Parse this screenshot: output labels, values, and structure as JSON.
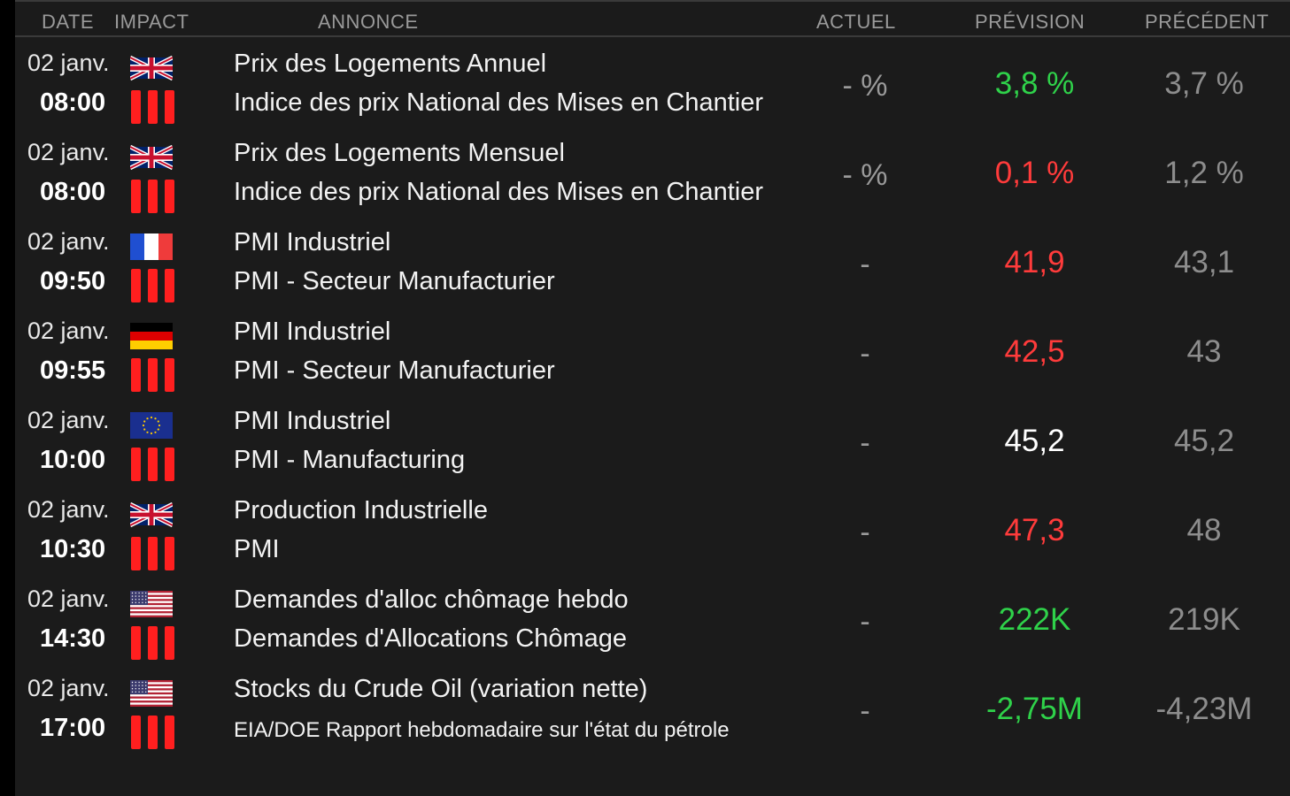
{
  "colors": {
    "up": "#2fd24a",
    "down": "#ff3b3b",
    "neutral": "#ffffff",
    "muted": "#8d8d8d",
    "impact": "#ff1f1f"
  },
  "header": {
    "date": "DATE",
    "impact": "IMPACT",
    "annonce": "ANNONCE",
    "actuel": "ACTUEL",
    "prevision": "PRÉVISION",
    "precedent": "PRÉCÉDENT"
  },
  "rows": [
    {
      "date": "02 janv.",
      "time": "08:00",
      "flag": "gb-flag-icon",
      "impact_level": 3,
      "title": "Prix des Logements Annuel",
      "subtitle": "Indice des prix National des Mises en Chantier",
      "actual": "- %",
      "forecast": "3,8 %",
      "forecast_trend": "up",
      "previous": "3,7 %"
    },
    {
      "date": "02 janv.",
      "time": "08:00",
      "flag": "gb-flag-icon",
      "impact_level": 3,
      "title": "Prix des Logements Mensuel",
      "subtitle": "Indice des prix National des Mises en Chantier",
      "actual": "- %",
      "forecast": "0,1 %",
      "forecast_trend": "down",
      "previous": "1,2 %"
    },
    {
      "date": "02 janv.",
      "time": "09:50",
      "flag": "fr-flag-icon",
      "impact_level": 3,
      "title": "PMI Industriel",
      "subtitle": "PMI - Secteur Manufacturier",
      "actual": "-",
      "forecast": "41,9",
      "forecast_trend": "down",
      "previous": "43,1"
    },
    {
      "date": "02 janv.",
      "time": "09:55",
      "flag": "de-flag-icon",
      "impact_level": 3,
      "title": "PMI Industriel",
      "subtitle": "PMI - Secteur Manufacturier",
      "actual": "-",
      "forecast": "42,5",
      "forecast_trend": "down",
      "previous": "43"
    },
    {
      "date": "02 janv.",
      "time": "10:00",
      "flag": "eu-flag-icon",
      "impact_level": 3,
      "title": "PMI Industriel",
      "subtitle": "PMI - Manufacturing",
      "actual": "-",
      "forecast": "45,2",
      "forecast_trend": "neutral",
      "previous": "45,2"
    },
    {
      "date": "02 janv.",
      "time": "10:30",
      "flag": "gb-flag-icon",
      "impact_level": 3,
      "title": "Production Industrielle",
      "subtitle": "PMI",
      "actual": "-",
      "forecast": "47,3",
      "forecast_trend": "down",
      "previous": "48"
    },
    {
      "date": "02 janv.",
      "time": "14:30",
      "flag": "us-flag-icon",
      "impact_level": 3,
      "title": "Demandes d'alloc chômage hebdo",
      "subtitle": "Demandes d'Allocations Chômage",
      "actual": "-",
      "forecast": "222K",
      "forecast_trend": "up",
      "previous": "219K"
    },
    {
      "date": "02 janv.",
      "time": "17:00",
      "flag": "us-flag-icon",
      "impact_level": 3,
      "title": "Stocks du Crude Oil (variation nette)",
      "subtitle": "EIA/DOE Rapport hebdomadaire sur l'état du pétrole",
      "actual": "-",
      "forecast": "-2,75M",
      "forecast_trend": "up",
      "previous": "-4,23M"
    }
  ]
}
